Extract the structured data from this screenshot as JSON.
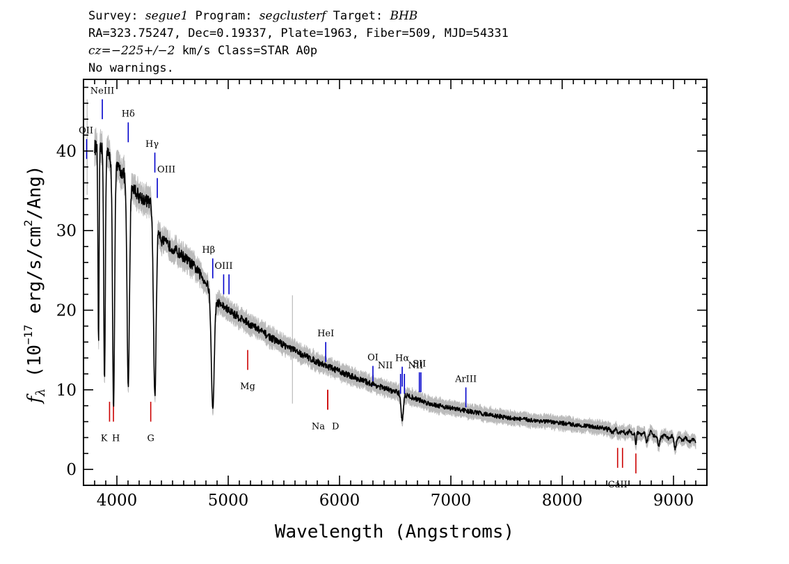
{
  "header": {
    "line1": [
      {
        "text": "Survey: ",
        "italic": false
      },
      {
        "text": "segue1",
        "italic": true
      },
      {
        "text": " Program: ",
        "italic": false
      },
      {
        "text": "segclusterf",
        "italic": true
      },
      {
        "text": " Target: ",
        "italic": false
      },
      {
        "text": "BHB",
        "italic": true
      }
    ],
    "line2": "RA=323.75247, Dec=0.19337, Plate=1963, Fiber=509, MJD=54331",
    "line3": [
      {
        "text": "cz=−225+/−2",
        "italic": true
      },
      {
        "text": " km/s Class=STAR A0p",
        "italic": false
      }
    ],
    "line4": "No warnings."
  },
  "chart_data": {
    "type": "line",
    "xlabel": "Wavelength (Angstroms)",
    "ylabel_parts": {
      "f": "f",
      "sub": "λ",
      "rest1": " (10",
      "exp1": "−17",
      "rest2": " erg/s/cm",
      "exp2": "2",
      "rest3": "/Ang)"
    },
    "xlim": [
      3700,
      9300
    ],
    "ylim": [
      -2,
      49
    ],
    "xticks": [
      4000,
      5000,
      6000,
      7000,
      8000,
      9000
    ],
    "yticks": [
      0,
      10,
      20,
      30,
      40
    ],
    "xticklabels": [
      "4000",
      "5000",
      "6000",
      "7000",
      "8000",
      "9000"
    ],
    "yticklabels": [
      "0",
      "10",
      "20",
      "30",
      "40"
    ],
    "series": [
      {
        "color": "#000000",
        "noise_color": "#bbbbbb",
        "continuum": [
          [
            3800,
            40.5
          ],
          [
            3900,
            40.0
          ],
          [
            4000,
            38.0
          ],
          [
            4100,
            36.5
          ],
          [
            4200,
            34.3
          ],
          [
            4300,
            33.5
          ],
          [
            4350,
            32.0
          ],
          [
            4400,
            28.8
          ],
          [
            4500,
            27.8
          ],
          [
            4600,
            26.7
          ],
          [
            4700,
            25.4
          ],
          [
            4800,
            23.5
          ],
          [
            4900,
            21.1
          ],
          [
            5000,
            20.0
          ],
          [
            5200,
            18.2
          ],
          [
            5400,
            16.4
          ],
          [
            5600,
            14.9
          ],
          [
            5800,
            13.5
          ],
          [
            6000,
            12.3
          ],
          [
            6200,
            11.2
          ],
          [
            6400,
            10.2
          ],
          [
            6600,
            9.3
          ],
          [
            6800,
            8.3
          ],
          [
            7000,
            7.7
          ],
          [
            7200,
            7.2
          ],
          [
            7500,
            6.5
          ],
          [
            8000,
            5.8
          ],
          [
            8500,
            5.0
          ],
          [
            8800,
            4.7
          ],
          [
            9000,
            4.2
          ],
          [
            9200,
            3.8
          ]
        ],
        "absorption": [
          {
            "center": 3835,
            "depth": 25.0,
            "width": 5
          },
          {
            "center": 3889,
            "depth": 29.0,
            "width": 7
          },
          {
            "center": 3970,
            "depth": 31.0,
            "width": 9
          },
          {
            "center": 4102,
            "depth": 26.0,
            "width": 11
          },
          {
            "center": 4341,
            "depth": 23.0,
            "width": 12
          },
          {
            "center": 4861,
            "depth": 14.5,
            "width": 13
          },
          {
            "center": 6563,
            "depth": 3.3,
            "width": 10
          },
          {
            "center": 8662,
            "depth": 1.5,
            "width": 6
          },
          {
            "center": 8760,
            "depth": 1.0,
            "width": 8
          },
          {
            "center": 8865,
            "depth": 1.4,
            "width": 10
          },
          {
            "center": 9015,
            "depth": 1.2,
            "width": 8
          }
        ]
      }
    ],
    "emission_lines": [
      {
        "label": "NeIII",
        "wavelength": 3869,
        "y_bottom": 44.0,
        "y_top": 46.5,
        "label_y": 47.2
      },
      {
        "label": "OII",
        "wavelength": 3728,
        "y_bottom": 39.0,
        "y_top": 41.5,
        "label_y": 42.2
      },
      {
        "label": "Hδ",
        "wavelength": 4102,
        "y_bottom": 41.1,
        "y_top": 43.6,
        "label_y": 44.3
      },
      {
        "label": "Hγ",
        "wavelength": 4341,
        "y_bottom": 37.3,
        "y_top": 39.8,
        "label_y": 40.5
      },
      {
        "label": "OIII",
        "wavelength": 4363,
        "y_bottom": 34.1,
        "y_top": 36.6,
        "label_y": 37.3
      },
      {
        "label": "Hβ",
        "wavelength": 4861,
        "y_bottom": 24.0,
        "y_top": 26.5,
        "label_y": 27.2
      },
      {
        "label": "OIII",
        "wavelength": 4959,
        "y_bottom": 22.0,
        "y_top": 24.5,
        "label_y": 25.2
      },
      {
        "label": "OIII",
        "wavelength": 5007,
        "y_bottom": 22.0,
        "y_top": 24.5,
        "label_y": null
      },
      {
        "label": "HeI",
        "wavelength": 5876,
        "y_bottom": 13.5,
        "y_top": 16.0,
        "label_y": 16.7
      },
      {
        "label": "OI",
        "wavelength": 6300,
        "y_bottom": 10.5,
        "y_top": 13.0,
        "label_y": 13.7
      },
      {
        "label": "NII",
        "wavelength": 6548,
        "y_bottom": 9.5,
        "y_top": 12.0,
        "label_y": 12.7
      },
      {
        "label": "Hα",
        "wavelength": 6563,
        "y_bottom": 10.4,
        "y_top": 12.9,
        "label_y": 13.6
      },
      {
        "label": "NII",
        "wavelength": 6583,
        "y_bottom": 9.5,
        "y_top": 12.0,
        "label_y": 12.7
      },
      {
        "label": "SII",
        "wavelength": 6717,
        "y_bottom": 9.7,
        "y_top": 12.2,
        "label_y": 12.9
      },
      {
        "label": "SII",
        "wavelength": 6731,
        "y_bottom": 9.7,
        "y_top": 12.2,
        "label_y": null
      },
      {
        "label": "ArIII",
        "wavelength": 7135,
        "y_bottom": 7.8,
        "y_top": 10.3,
        "label_y": 11.0
      }
    ],
    "absorption_lines": [
      {
        "label": "K",
        "wavelength": 3934,
        "y_bottom": 6.0,
        "y_top": 8.5,
        "label_y": 4.6
      },
      {
        "label": "H",
        "wavelength": 3969,
        "y_bottom": 6.0,
        "y_top": 8.5,
        "label_y": 4.6
      },
      {
        "label": "G",
        "wavelength": 4304,
        "y_bottom": 6.0,
        "y_top": 8.5,
        "label_y": 4.6
      },
      {
        "label": "Mg",
        "wavelength": 5175,
        "y_bottom": 12.5,
        "y_top": 15.0,
        "label_y": 11.1
      },
      {
        "label": "Na",
        "wavelength": 5894,
        "y_bottom": 7.5,
        "y_top": 10.0,
        "label_y": 6.1
      },
      {
        "label": "D",
        "wavelength": 5894,
        "y_bottom": 7.5,
        "y_top": 10.0,
        "label_y": 6.1
      },
      {
        "label": "CaII",
        "wavelength": 8498,
        "y_bottom": 0.2,
        "y_top": 2.7,
        "label_y": -1.2
      },
      {
        "label": "CaII",
        "wavelength": 8542,
        "y_bottom": 0.2,
        "y_top": 2.7,
        "label_y": null
      },
      {
        "label": "CaII",
        "wavelength": 8662,
        "y_bottom": -0.5,
        "y_top": 2.0,
        "label_y": null
      }
    ],
    "emission_color": "#0000cc",
    "absorption_color": "#cc0000"
  }
}
